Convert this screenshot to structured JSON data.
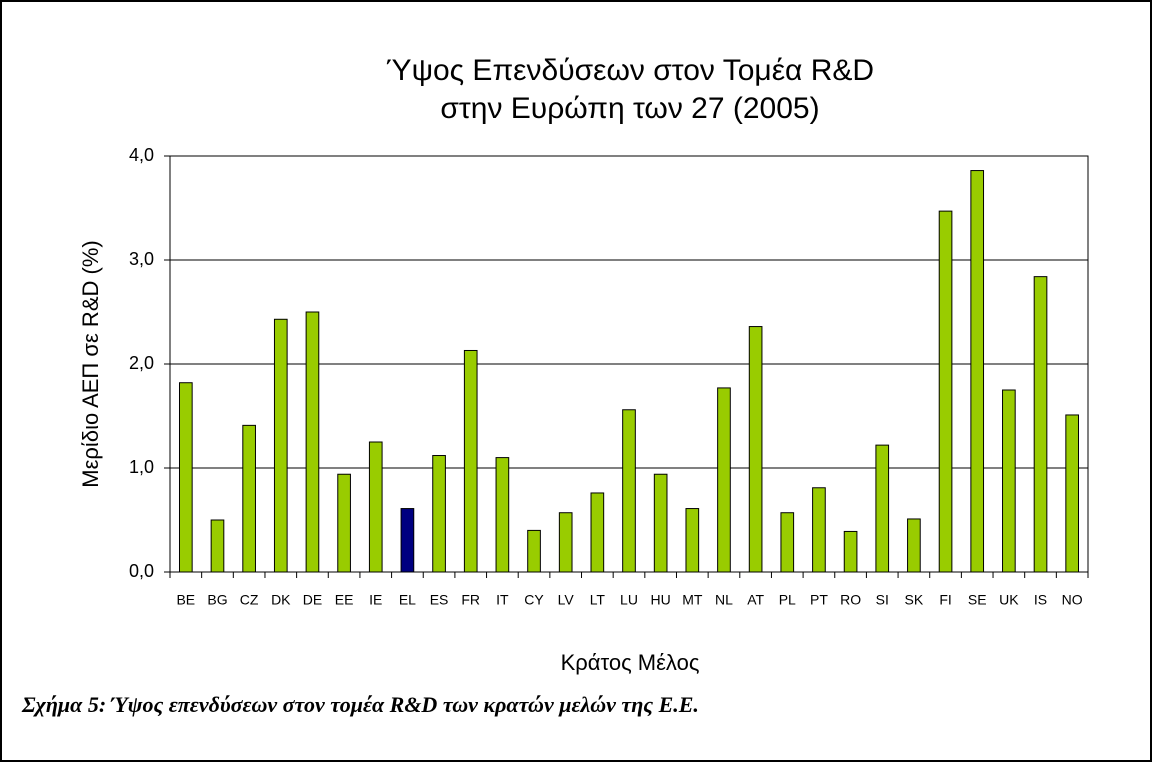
{
  "chart_data": {
    "type": "bar",
    "title": [
      "Ύψος Επενδύσεων στον Τομέα R&D",
      "στην Ευρώπη των 27 (2005)"
    ],
    "y_label": "Μερίδιο ΑΕΠ σε R&D (%)",
    "x_label": "Κράτος Μέλος",
    "categories": [
      "BE",
      "BG",
      "CZ",
      "DK",
      "DE",
      "EE",
      "IE",
      "EL",
      "ES",
      "FR",
      "IT",
      "CY",
      "LV",
      "LT",
      "LU",
      "HU",
      "MT",
      "NL",
      "AT",
      "PL",
      "PT",
      "RO",
      "SI",
      "SK",
      "FI",
      "SE",
      "UK",
      "IS",
      "NO"
    ],
    "values": [
      1.82,
      0.5,
      1.41,
      2.43,
      2.5,
      0.94,
      1.25,
      0.61,
      1.12,
      2.13,
      1.1,
      0.4,
      0.57,
      0.76,
      1.56,
      0.94,
      0.61,
      1.77,
      2.36,
      0.57,
      0.81,
      0.39,
      1.22,
      0.51,
      3.47,
      3.86,
      1.75,
      2.84,
      1.51
    ],
    "colors": [
      "#99cc00",
      "#99cc00",
      "#99cc00",
      "#99cc00",
      "#99cc00",
      "#99cc00",
      "#99cc00",
      "#000080",
      "#99cc00",
      "#99cc00",
      "#99cc00",
      "#99cc00",
      "#99cc00",
      "#99cc00",
      "#99cc00",
      "#99cc00",
      "#99cc00",
      "#99cc00",
      "#99cc00",
      "#99cc00",
      "#99cc00",
      "#99cc00",
      "#99cc00",
      "#99cc00",
      "#99cc00",
      "#99cc00",
      "#99cc00",
      "#99cc00",
      "#99cc00"
    ],
    "ylim": [
      0,
      4
    ],
    "yticks": [
      {
        "value": 0,
        "label": "0,0"
      },
      {
        "value": 1,
        "label": "1,0"
      },
      {
        "value": 2,
        "label": "2,0"
      },
      {
        "value": 3,
        "label": "3,0"
      },
      {
        "value": 4,
        "label": "4,0"
      }
    ],
    "grid": true
  },
  "caption": "Σχήμα 5: Ύψος επενδύσεων στον τομέα R&D των κρατών μελών της Ε.Ε."
}
